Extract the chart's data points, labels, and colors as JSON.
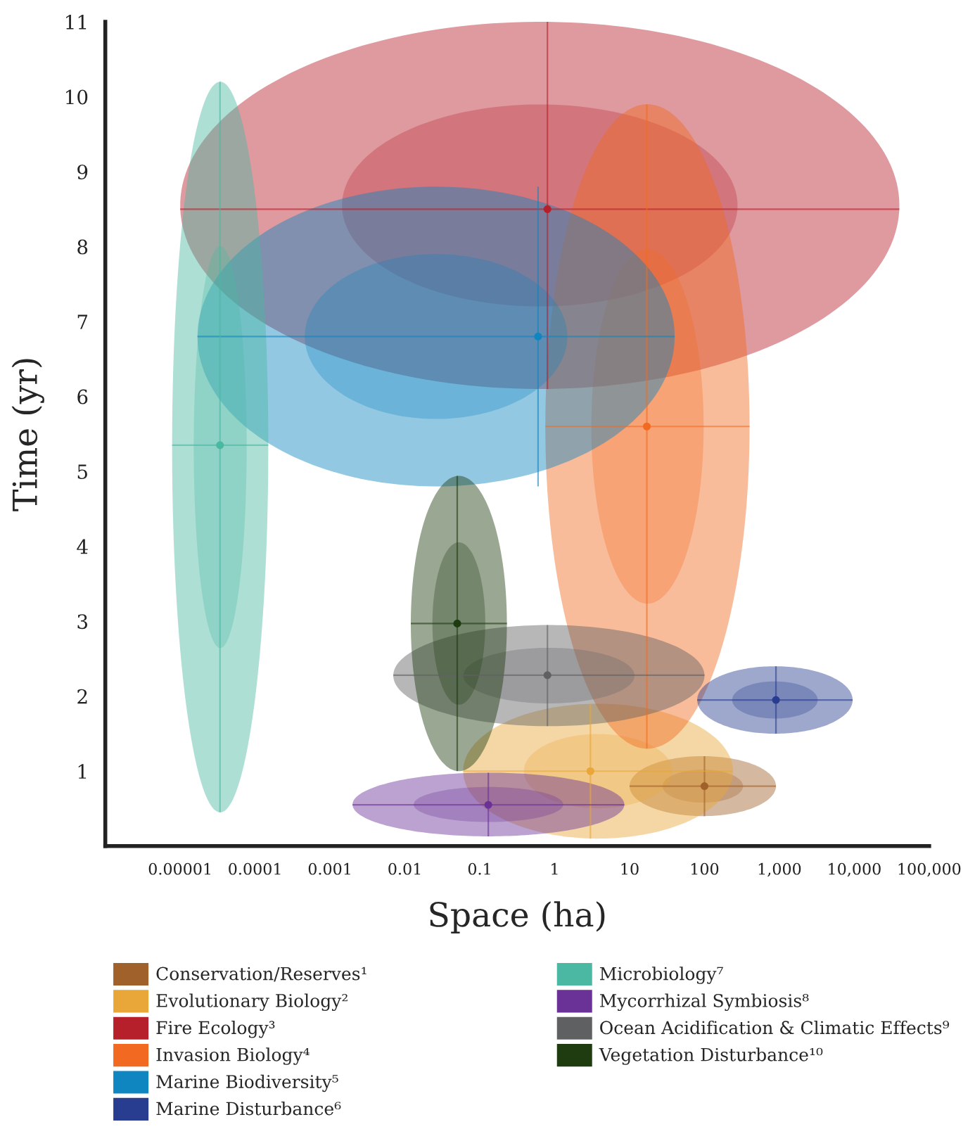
{
  "chart_data": {
    "type": "scatter",
    "xlabel": "Space (ha)",
    "ylabel": "Time (yr)",
    "log": "x",
    "xlim": [
      1e-06,
      100000
    ],
    "ylim": [
      0,
      11
    ],
    "xticks": [
      {
        "value": 1e-05,
        "label": "0.00001"
      },
      {
        "value": 0.0001,
        "label": "0.0001"
      },
      {
        "value": 0.001,
        "label": "0.001"
      },
      {
        "value": 0.01,
        "label": "0.01"
      },
      {
        "value": 0.1,
        "label": "0.1"
      },
      {
        "value": 1,
        "label": "1"
      },
      {
        "value": 10,
        "label": "10"
      },
      {
        "value": 100,
        "label": "100"
      },
      {
        "value": 1000,
        "label": "1,000"
      },
      {
        "value": 10000,
        "label": "10,000"
      },
      {
        "value": 100000,
        "label": "100,000"
      }
    ],
    "yticks": [
      1,
      2,
      3,
      4,
      5,
      6,
      7,
      8,
      9,
      10,
      11
    ],
    "grid": false,
    "legend": "bottom",
    "marker": "circle",
    "series": [
      {
        "name": "Conservation/Reserves¹",
        "color": "#a0612a",
        "x": [
          100
        ],
        "values": [
          0.8
        ],
        "xerrors": [
          [
            10,
            900
          ]
        ],
        "errors": [
          [
            0.4,
            1.2
          ]
        ]
      },
      {
        "name": "Evolutionary Biology²",
        "color": "#e9a73a",
        "x": [
          3
        ],
        "values": [
          1.0
        ],
        "xerrors": [
          [
            0.06,
            240
          ]
        ],
        "errors": [
          [
            0.1,
            1.9
          ]
        ]
      },
      {
        "name": "Fire Ecology³",
        "color": "#b5202a",
        "x": [
          0.8
        ],
        "values": [
          8.5
        ],
        "xerrors": [
          [
            1e-05,
            40000
          ]
        ],
        "errors": [
          [
            6.1,
            11
          ]
        ]
      },
      {
        "name": "Invasion Biology⁴",
        "color": "#f26a21",
        "x": [
          17
        ],
        "values": [
          5.6
        ],
        "xerrors": [
          [
            0.75,
            400
          ]
        ],
        "errors": [
          [
            1.3,
            9.9
          ]
        ]
      },
      {
        "name": "Marine Biodiversity⁵",
        "color": "#0f86c0",
        "x": [
          0.6
        ],
        "values": [
          6.8
        ],
        "xerrors": [
          [
            1.7e-05,
            40
          ]
        ],
        "errors": [
          [
            4.8,
            8.8
          ]
        ]
      },
      {
        "name": "Marine Disturbance⁶",
        "color": "#283d8f",
        "x": [
          900
        ],
        "values": [
          1.95
        ],
        "xerrors": [
          [
            80,
            9500
          ]
        ],
        "errors": [
          [
            1.5,
            2.4
          ]
        ]
      },
      {
        "name": "Microbiology⁷",
        "color": "#4ab8a2",
        "x": [
          3.4e-05
        ],
        "values": [
          5.35
        ],
        "xerrors": [
          [
            7.8e-06,
            0.00015
          ]
        ],
        "errors": [
          [
            0.45,
            10.2
          ]
        ]
      },
      {
        "name": "Mycorrhizal Symbiosis⁸",
        "color": "#6a3196",
        "x": [
          0.13
        ],
        "values": [
          0.55
        ],
        "xerrors": [
          [
            0.002,
            8.5
          ]
        ],
        "errors": [
          [
            0.13,
            0.98
          ]
        ]
      },
      {
        "name": "Ocean Acidification & Climatic Effects⁹",
        "color": "#5f6062",
        "x": [
          0.8
        ],
        "values": [
          2.28
        ],
        "xerrors": [
          [
            0.007,
            100
          ]
        ],
        "errors": [
          [
            1.6,
            2.95
          ]
        ]
      },
      {
        "name": "Vegetation Disturbance¹⁰",
        "color": "#1e3c10",
        "x": [
          0.05
        ],
        "values": [
          2.97
        ],
        "xerrors": [
          [
            0.012,
            0.23
          ]
        ],
        "errors": [
          [
            1.0,
            4.94
          ]
        ]
      }
    ]
  }
}
